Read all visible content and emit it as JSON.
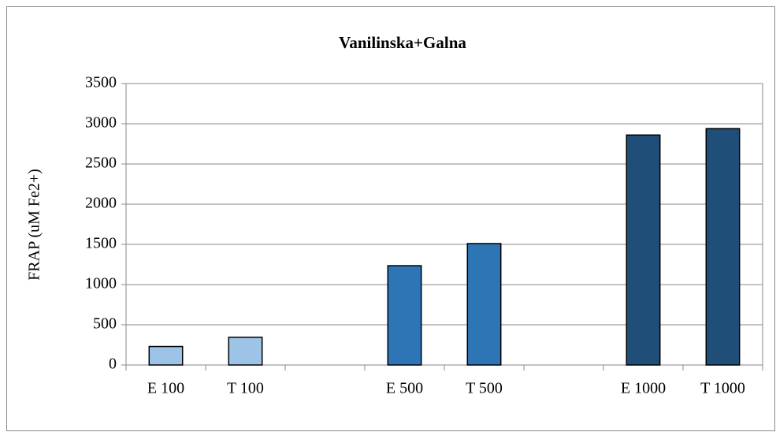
{
  "chart_data": {
    "type": "bar",
    "title": "Vanilinska+Galna",
    "ylabel": "FRAP (uM Fe2+)",
    "categories": [
      "E 100",
      "T 100",
      null,
      "E 500",
      "T 500",
      null,
      "E 1000",
      "T 1000"
    ],
    "values": [
      230,
      345,
      null,
      1235,
      1510,
      null,
      2860,
      2940
    ],
    "colors": [
      "#9dc3e6",
      "#9dc3e6",
      null,
      "#2e75b6",
      "#2e75b6",
      null,
      "#1f4e79",
      "#1f4e79"
    ],
    "ylim": [
      0,
      3500
    ],
    "yticks": [
      0,
      500,
      1000,
      1500,
      2000,
      2500,
      3000,
      3500
    ],
    "grid": true
  }
}
